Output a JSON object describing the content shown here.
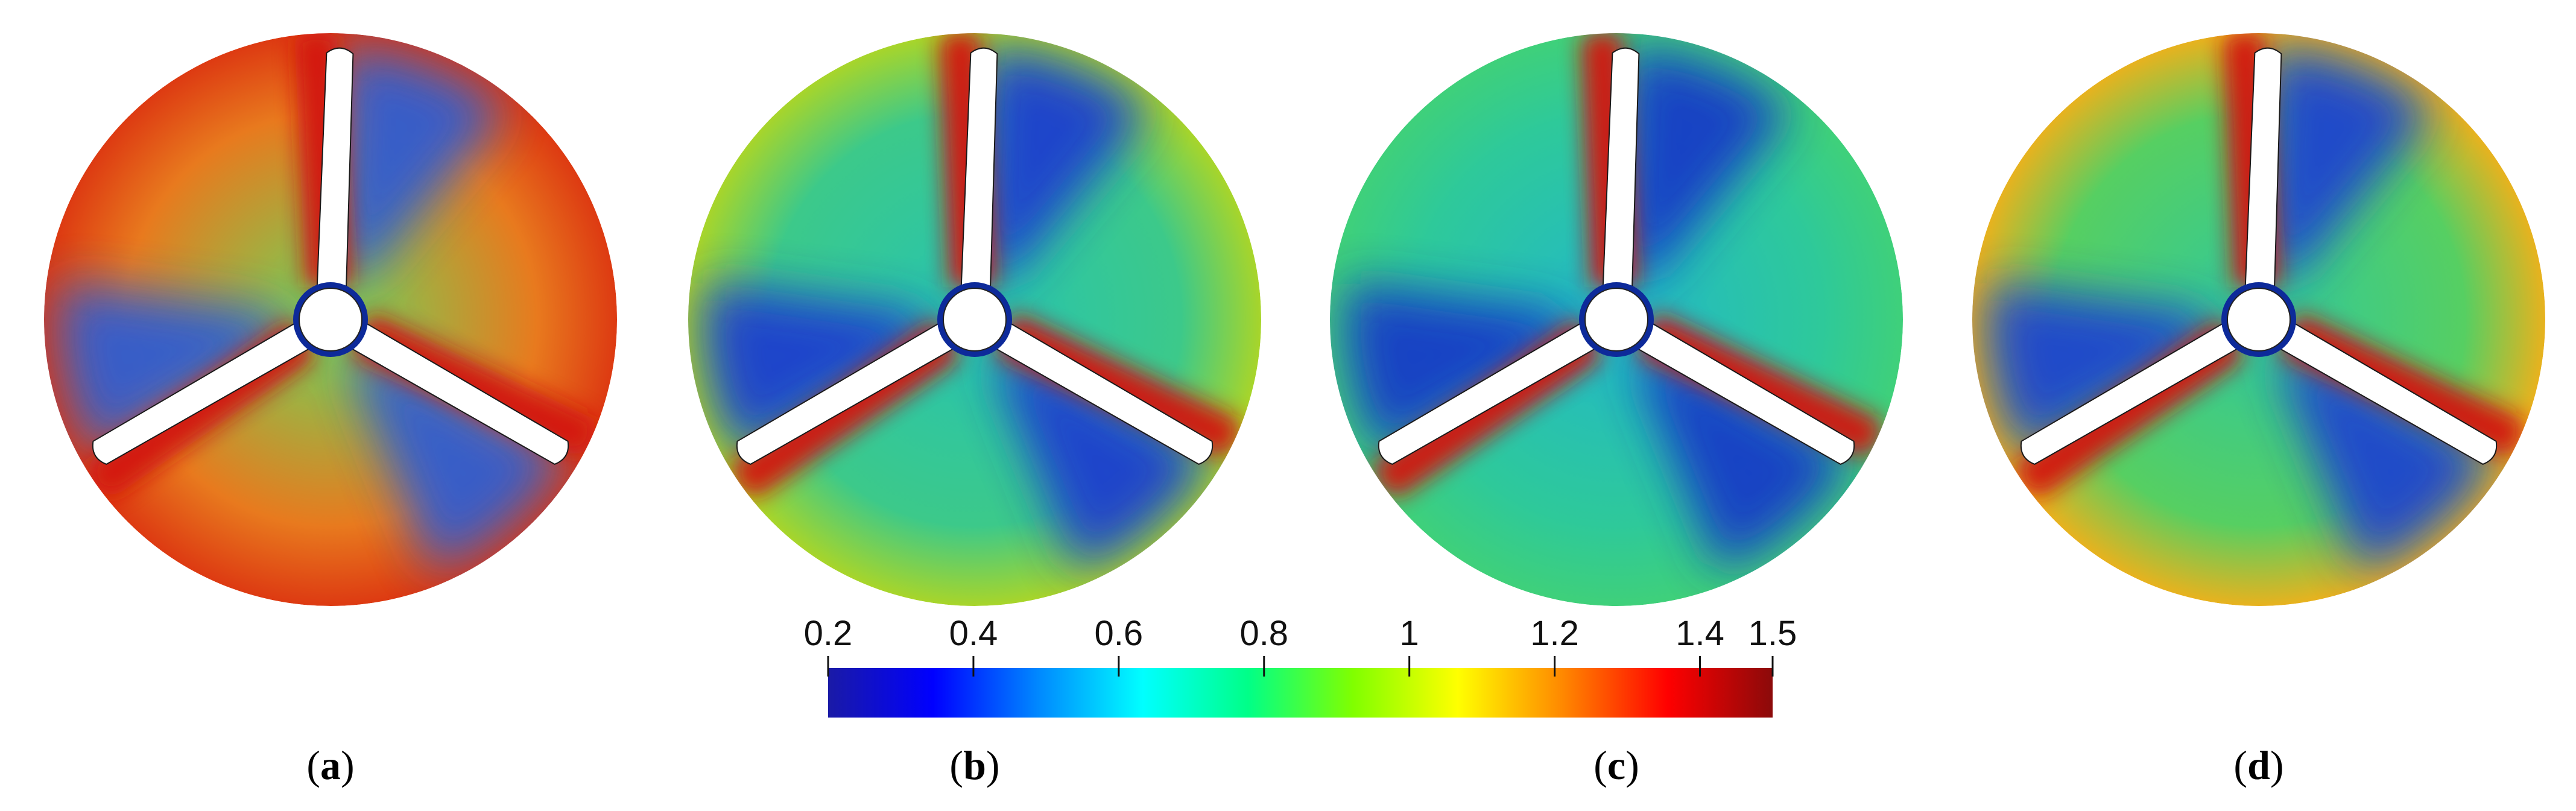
{
  "panels": [
    {
      "label_letter": "a"
    },
    {
      "label_letter": "b"
    },
    {
      "label_letter": "c"
    },
    {
      "label_letter": "d"
    }
  ],
  "colorbar": {
    "ticks": [
      "0.2",
      "0.4",
      "0.6",
      "0.8",
      "1",
      "1.2",
      "1.4",
      "1.5"
    ],
    "tick_values": [
      0.2,
      0.4,
      0.6,
      0.8,
      1.0,
      1.2,
      1.4,
      1.5
    ],
    "range": [
      0.2,
      1.5
    ],
    "colormap": [
      "#1a1aa6",
      "#0000ff",
      "#0088ff",
      "#00ffff",
      "#00ff88",
      "#80ff00",
      "#ffff00",
      "#ff8800",
      "#ff0000",
      "#8b0a0a"
    ]
  },
  "panel_colors": {
    "a": {
      "base": "#e87a1e",
      "outer": "#dd3a12",
      "inner_low": "#2a5cd6",
      "mid": "#6ed65a"
    },
    "b": {
      "base": "#3cc98a",
      "outer": "#a8d52a",
      "inner_low": "#1a3ad0",
      "mid": "#27c4b0"
    },
    "c": {
      "base": "#2ec99a",
      "outer": "#3fd07a",
      "inner_low": "#1838c8",
      "mid": "#22b8c8"
    },
    "d": {
      "base": "#56cf62",
      "outer": "#e8b21e",
      "inner_low": "#1c40d2",
      "mid": "#30c89c"
    }
  }
}
